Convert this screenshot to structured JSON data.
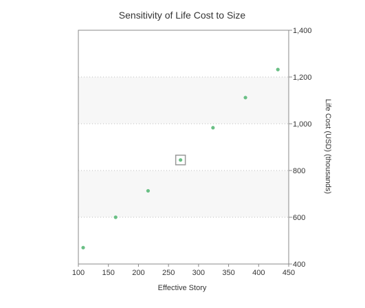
{
  "chart_data": {
    "type": "scatter",
    "title": "Sensitivity of Life Cost to Size",
    "xlabel": "Effective Story",
    "ylabel": "Life Cost (USD) (thousands)",
    "xlim": [
      100,
      450
    ],
    "ylim": [
      400,
      1400
    ],
    "x_ticks": [
      100,
      150,
      200,
      250,
      300,
      350,
      400,
      450
    ],
    "y_ticks": [
      400,
      600,
      800,
      1000,
      1200,
      1400
    ],
    "y_tick_labels": [
      "400",
      "600",
      "800",
      "1,000",
      "1,200",
      "1,400"
    ],
    "y_axis_side": "right",
    "grid": "horizontal dotted lines with alternating light bands",
    "points": [
      {
        "x": 108,
        "y": 470
      },
      {
        "x": 162,
        "y": 600
      },
      {
        "x": 216,
        "y": 713
      },
      {
        "x": 270,
        "y": 845,
        "highlighted": true
      },
      {
        "x": 324,
        "y": 983
      },
      {
        "x": 378,
        "y": 1112
      },
      {
        "x": 432,
        "y": 1232
      }
    ],
    "colors": {
      "point": "#6abf85",
      "highlight_box": "#999999",
      "band": "#f7f7f7",
      "gridline": "#bbbbbb",
      "axis": "#888888",
      "text": "#333333"
    }
  }
}
